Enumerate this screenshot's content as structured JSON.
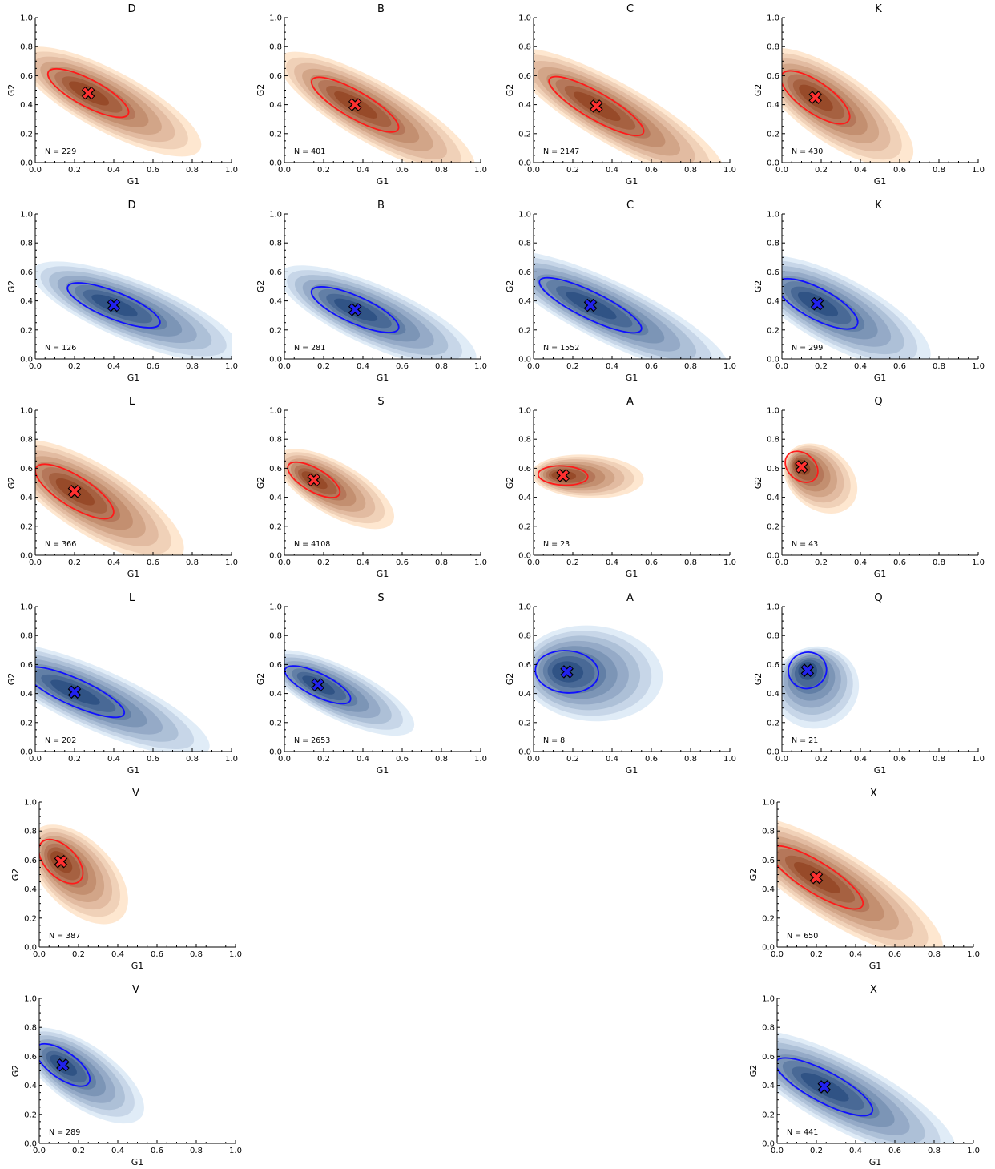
{
  "figure": {
    "x_axis_label": "G1",
    "y_axis_label": "G2",
    "x_ticks": [
      "0.0",
      "0.2",
      "0.4",
      "0.6",
      "0.8",
      "1.0"
    ],
    "y_ticks": [
      "0.0",
      "0.2",
      "0.4",
      "0.6",
      "0.8",
      "1.0"
    ],
    "colors": {
      "red": {
        "fill_light": "#fee6ce",
        "fill_dark": "#7f2704",
        "contour": "#ff1a1a",
        "marker": "#ff3030"
      },
      "blue": {
        "fill_light": "#deebf7",
        "fill_dark": "#08306b",
        "contour": "#1010ff",
        "marker": "#2222ee"
      }
    }
  },
  "chart_data": [
    {
      "type": "density",
      "title": "D",
      "color": "red",
      "n_label": "N = 229",
      "center": [
        0.27,
        0.48
      ],
      "xlim": [
        0,
        1
      ],
      "ylim": [
        0,
        1
      ]
    },
    {
      "type": "density",
      "title": "B",
      "color": "red",
      "n_label": "N = 401",
      "center": [
        0.36,
        0.4
      ],
      "xlim": [
        0,
        1
      ],
      "ylim": [
        0,
        1
      ]
    },
    {
      "type": "density",
      "title": "C",
      "color": "red",
      "n_label": "N = 2147",
      "center": [
        0.32,
        0.39
      ],
      "xlim": [
        0,
        1
      ],
      "ylim": [
        0,
        1
      ]
    },
    {
      "type": "density",
      "title": "K",
      "color": "red",
      "n_label": "N = 430",
      "center": [
        0.17,
        0.45
      ],
      "xlim": [
        0,
        1
      ],
      "ylim": [
        0,
        1
      ]
    },
    {
      "type": "density",
      "title": "D",
      "color": "blue",
      "n_label": "N = 126",
      "center": [
        0.4,
        0.37
      ],
      "xlim": [
        0,
        1
      ],
      "ylim": [
        0,
        1
      ]
    },
    {
      "type": "density",
      "title": "B",
      "color": "blue",
      "n_label": "N = 281",
      "center": [
        0.36,
        0.34
      ],
      "xlim": [
        0,
        1
      ],
      "ylim": [
        0,
        1
      ]
    },
    {
      "type": "density",
      "title": "C",
      "color": "blue",
      "n_label": "N = 1552",
      "center": [
        0.29,
        0.37
      ],
      "xlim": [
        0,
        1
      ],
      "ylim": [
        0,
        1
      ]
    },
    {
      "type": "density",
      "title": "K",
      "color": "blue",
      "n_label": "N = 299",
      "center": [
        0.18,
        0.38
      ],
      "xlim": [
        0,
        1
      ],
      "ylim": [
        0,
        1
      ]
    },
    {
      "type": "density",
      "title": "L",
      "color": "red",
      "n_label": "N = 366",
      "center": [
        0.2,
        0.44
      ],
      "xlim": [
        0,
        1
      ],
      "ylim": [
        0,
        1
      ]
    },
    {
      "type": "density",
      "title": "S",
      "color": "red",
      "n_label": "N = 4108",
      "center": [
        0.15,
        0.52
      ],
      "xlim": [
        0,
        1
      ],
      "ylim": [
        0,
        1
      ]
    },
    {
      "type": "density",
      "title": "A",
      "color": "red",
      "n_label": "N = 23",
      "center": [
        0.15,
        0.55
      ],
      "xlim": [
        0,
        1
      ],
      "ylim": [
        0,
        1
      ]
    },
    {
      "type": "density",
      "title": "Q",
      "color": "red",
      "n_label": "N = 43",
      "center": [
        0.1,
        0.61
      ],
      "xlim": [
        0,
        1
      ],
      "ylim": [
        0,
        1
      ]
    },
    {
      "type": "density",
      "title": "L",
      "color": "blue",
      "n_label": "N = 202",
      "center": [
        0.2,
        0.41
      ],
      "xlim": [
        0,
        1
      ],
      "ylim": [
        0,
        1
      ]
    },
    {
      "type": "density",
      "title": "S",
      "color": "blue",
      "n_label": "N = 2653",
      "center": [
        0.17,
        0.46
      ],
      "xlim": [
        0,
        1
      ],
      "ylim": [
        0,
        1
      ]
    },
    {
      "type": "density",
      "title": "A",
      "color": "blue",
      "n_label": "N = 8",
      "center": [
        0.17,
        0.55
      ],
      "xlim": [
        0,
        1
      ],
      "ylim": [
        0,
        1
      ]
    },
    {
      "type": "density",
      "title": "Q",
      "color": "blue",
      "n_label": "N = 21",
      "center": [
        0.13,
        0.56
      ],
      "xlim": [
        0,
        1
      ],
      "ylim": [
        0,
        1
      ]
    },
    {
      "type": "density",
      "title": "V",
      "color": "red",
      "n_label": "N = 387",
      "center": [
        0.11,
        0.59
      ],
      "xlim": [
        0,
        1
      ],
      "ylim": [
        0,
        1
      ]
    },
    {
      "type": "density",
      "title": "X",
      "color": "red",
      "n_label": "N = 650",
      "center": [
        0.2,
        0.48
      ],
      "xlim": [
        0,
        1
      ],
      "ylim": [
        0,
        1
      ]
    },
    {
      "type": "density",
      "title": "V",
      "color": "blue",
      "n_label": "N = 289",
      "center": [
        0.12,
        0.54
      ],
      "xlim": [
        0,
        1
      ],
      "ylim": [
        0,
        1
      ]
    },
    {
      "type": "density",
      "title": "X",
      "color": "blue",
      "n_label": "N = 441",
      "center": [
        0.24,
        0.39
      ],
      "xlim": [
        0,
        1
      ],
      "ylim": [
        0,
        1
      ]
    }
  ]
}
